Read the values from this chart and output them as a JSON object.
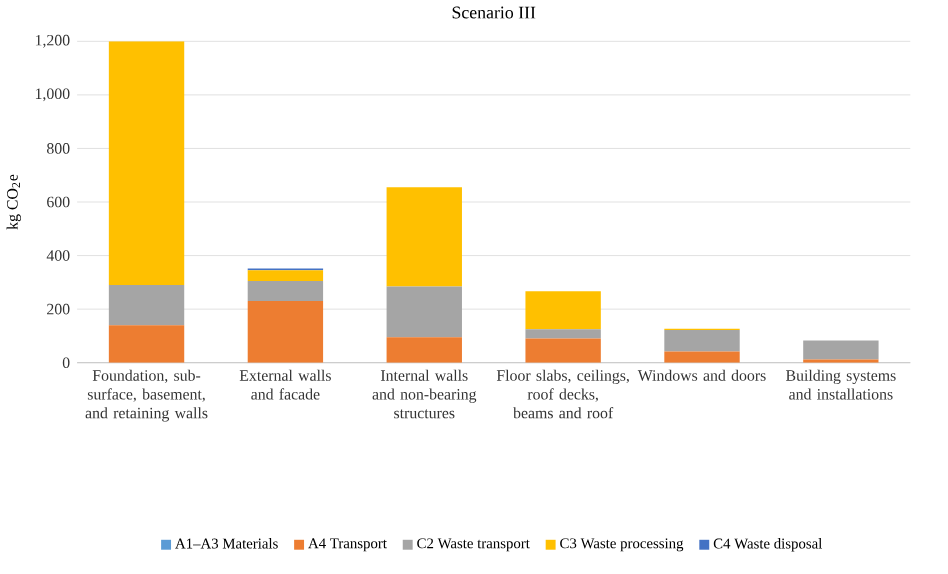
{
  "chart_data": {
    "type": "bar",
    "title": "Scenario III",
    "ylabel": "kg CO$_{2}$e",
    "stacked": true,
    "grid": "y",
    "legend": "bottom",
    "categories": [
      "Foundation, sub-surface, basement, and retaining walls",
      "External walls and facade",
      "Internal walls and non-bearing structures",
      "Floor slabs, ceilings, roof decks, beams and roof",
      "Windows and doors",
      "Building systems and installations"
    ],
    "ylim": [
      0,
      1200
    ],
    "yticks": [
      0,
      200,
      400,
      600,
      800,
      {
        "value": 1000,
        "label": "1,000"
      },
      {
        "value": 1200,
        "label": "1,200"
      }
    ],
    "series": [
      {
        "name": "A1–A3 Materials",
        "color": "#5b9bd5",
        "values": [
          0,
          0,
          0,
          0,
          0,
          0
        ]
      },
      {
        "name": "A4 Transport",
        "color": "#ed7d31",
        "values": [
          140,
          230,
          95,
          90,
          42,
          12
        ]
      },
      {
        "name": "C2 Waste transport",
        "color": "#a5a5a5",
        "values": [
          150,
          75,
          190,
          35,
          80,
          71
        ]
      },
      {
        "name": "C3 Waste processing",
        "color": "#ffc000",
        "values": [
          910,
          40,
          370,
          142,
          5,
          0
        ]
      },
      {
        "name": "C4 Waste disposal",
        "color": "#4472c4",
        "values": [
          0,
          7,
          0,
          0,
          0,
          null
        ]
      }
    ]
  }
}
